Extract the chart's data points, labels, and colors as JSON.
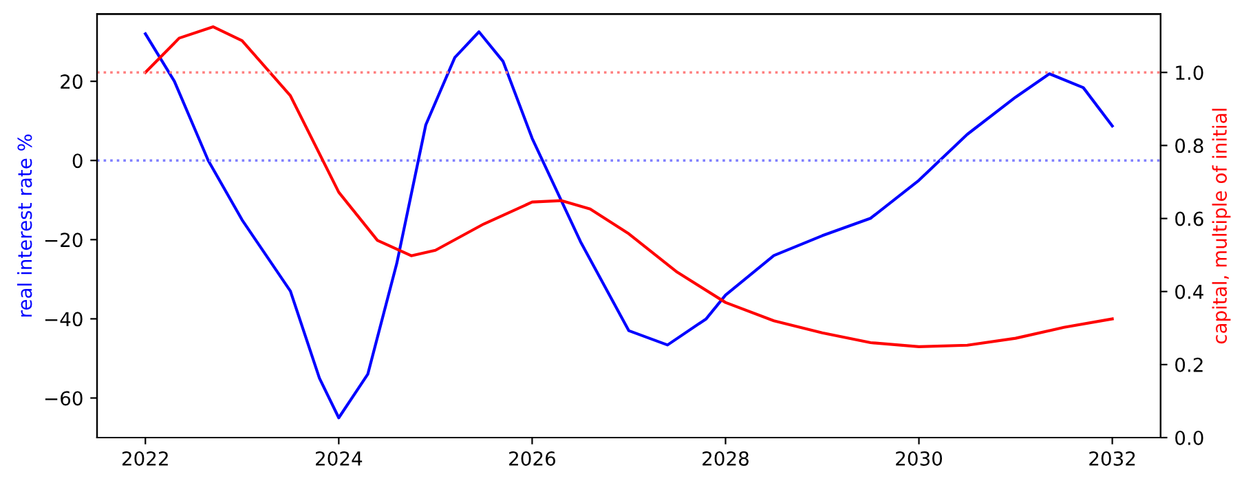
{
  "chart_data": {
    "type": "line",
    "ylabel": "real interest rate %",
    "y2label": "capital, multiple of initial",
    "xlim": [
      2021.5,
      2032.5
    ],
    "xticks": [
      2022,
      2024,
      2026,
      2028,
      2030,
      2032
    ],
    "ylim": [
      -70,
      37
    ],
    "yticks": [
      {
        "value": -60,
        "label": "−60"
      },
      {
        "value": -40,
        "label": "−40"
      },
      {
        "value": -20,
        "label": "−20"
      },
      {
        "value": 0,
        "label": "0"
      },
      {
        "value": 20,
        "label": "20"
      }
    ],
    "y2lim": [
      0,
      1.16
    ],
    "y2ticks": [
      {
        "value": 0,
        "label": "0.0"
      },
      {
        "value": 0.2,
        "label": "0.2"
      },
      {
        "value": 0.4,
        "label": "0.4"
      },
      {
        "value": 0.6,
        "label": "0.6"
      },
      {
        "value": 0.8,
        "label": "0.8"
      },
      {
        "value": 1.0,
        "label": "1.0"
      }
    ],
    "grid": false,
    "legend": false,
    "marker": "none",
    "line_style": "solid",
    "series": [
      {
        "color": "#0000ff",
        "x": [
          2022,
          2022.3,
          2022.65,
          2023,
          2023.5,
          2023.8,
          2024,
          2024.3,
          2024.6,
          2024.9,
          2025.2,
          2025.45,
          2025.7,
          2026,
          2026.5,
          2027,
          2027.4,
          2027.8,
          2028,
          2028.5,
          2029,
          2029.5,
          2030,
          2030.5,
          2031,
          2031.35,
          2031.7,
          2032
        ],
        "values": [
          32,
          20,
          0,
          -15,
          -33,
          -55,
          -65,
          -54,
          -26,
          9,
          26,
          32.5,
          25,
          5.6,
          -20.5,
          -43,
          -46.6,
          -40,
          -34,
          -24,
          -19,
          -14.6,
          -5,
          6.6,
          16,
          21.9,
          18.4,
          8.7
        ]
      },
      {
        "color": "#ff0000",
        "axis": "y2",
        "x": [
          2022,
          2022.35,
          2022.7,
          2023,
          2023.5,
          2024,
          2024.4,
          2024.75,
          2025,
          2025.5,
          2026,
          2026.3,
          2026.6,
          2027,
          2027.5,
          2028,
          2028.5,
          2029,
          2029.5,
          2030,
          2030.5,
          2031,
          2031.5,
          2032
        ],
        "values": [
          1.0,
          1.094,
          1.125,
          1.087,
          0.936,
          0.672,
          0.54,
          0.498,
          0.513,
          0.585,
          0.645,
          0.649,
          0.626,
          0.558,
          0.453,
          0.37,
          0.32,
          0.287,
          0.26,
          0.249,
          0.253,
          0.272,
          0.302,
          0.325
        ]
      }
    ],
    "ref_lines": [
      {
        "axis": "y",
        "value": 0,
        "color": "#8080ff",
        "line_style": "dotted"
      },
      {
        "axis": "y2",
        "value": 1.0,
        "color": "#ff8080",
        "line_style": "dotted"
      }
    ]
  }
}
